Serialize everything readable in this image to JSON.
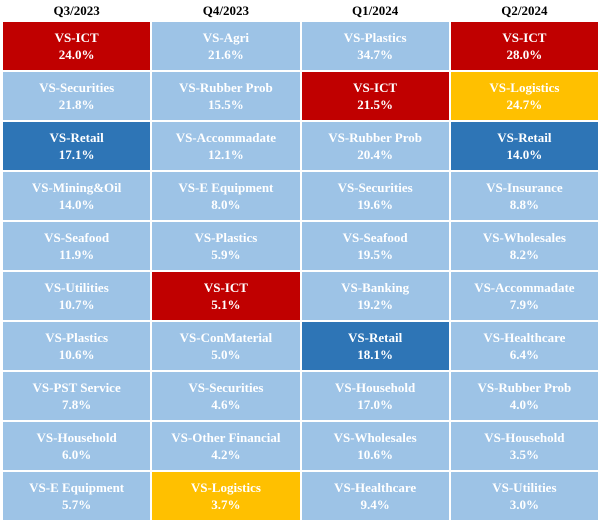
{
  "colors": {
    "default": "#9dc3e6",
    "ICT": "#c00000",
    "Retail": "#2e75b6",
    "Logistics": "#ffc000"
  },
  "chart_data": {
    "type": "table",
    "columns": [
      "Q3/2023",
      "Q4/2023",
      "Q1/2024",
      "Q2/2024"
    ],
    "rows": [
      [
        {
          "name": "VS-ICT",
          "value": "24.0%",
          "highlight": "ICT"
        },
        {
          "name": "VS-Agri",
          "value": "21.6%",
          "highlight": "default"
        },
        {
          "name": "VS-Plastics",
          "value": "34.7%",
          "highlight": "default"
        },
        {
          "name": "VS-ICT",
          "value": "28.0%",
          "highlight": "ICT"
        }
      ],
      [
        {
          "name": "VS-Securities",
          "value": "21.8%",
          "highlight": "default"
        },
        {
          "name": "VS-Rubber Prob",
          "value": "15.5%",
          "highlight": "default"
        },
        {
          "name": "VS-ICT",
          "value": "21.5%",
          "highlight": "ICT"
        },
        {
          "name": "VS-Logistics",
          "value": "24.7%",
          "highlight": "Logistics"
        }
      ],
      [
        {
          "name": "VS-Retail",
          "value": "17.1%",
          "highlight": "Retail"
        },
        {
          "name": "VS-Accommadate",
          "value": "12.1%",
          "highlight": "default"
        },
        {
          "name": "VS-Rubber Prob",
          "value": "20.4%",
          "highlight": "default"
        },
        {
          "name": "VS-Retail",
          "value": "14.0%",
          "highlight": "Retail"
        }
      ],
      [
        {
          "name": "VS-Mining&Oil",
          "value": "14.0%",
          "highlight": "default"
        },
        {
          "name": "VS-E Equipment",
          "value": "8.0%",
          "highlight": "default"
        },
        {
          "name": "VS-Securities",
          "value": "19.6%",
          "highlight": "default"
        },
        {
          "name": "VS-Insurance",
          "value": "8.8%",
          "highlight": "default"
        }
      ],
      [
        {
          "name": "VS-Seafood",
          "value": "11.9%",
          "highlight": "default"
        },
        {
          "name": "VS-Plastics",
          "value": "5.9%",
          "highlight": "default"
        },
        {
          "name": "VS-Seafood",
          "value": "19.5%",
          "highlight": "default"
        },
        {
          "name": "VS-Wholesales",
          "value": "8.2%",
          "highlight": "default"
        }
      ],
      [
        {
          "name": "VS-Utilities",
          "value": "10.7%",
          "highlight": "default"
        },
        {
          "name": "VS-ICT",
          "value": "5.1%",
          "highlight": "ICT"
        },
        {
          "name": "VS-Banking",
          "value": "19.2%",
          "highlight": "default"
        },
        {
          "name": "VS-Accommadate",
          "value": "7.9%",
          "highlight": "default"
        }
      ],
      [
        {
          "name": "VS-Plastics",
          "value": "10.6%",
          "highlight": "default"
        },
        {
          "name": "VS-ConMaterial",
          "value": "5.0%",
          "highlight": "default"
        },
        {
          "name": "VS-Retail",
          "value": "18.1%",
          "highlight": "Retail"
        },
        {
          "name": "VS-Healthcare",
          "value": "6.4%",
          "highlight": "default"
        }
      ],
      [
        {
          "name": "VS-PST Service",
          "value": "7.8%",
          "highlight": "default"
        },
        {
          "name": "VS-Securities",
          "value": "4.6%",
          "highlight": "default"
        },
        {
          "name": "VS-Household",
          "value": "17.0%",
          "highlight": "default"
        },
        {
          "name": "VS-Rubber Prob",
          "value": "4.0%",
          "highlight": "default"
        }
      ],
      [
        {
          "name": "VS-Household",
          "value": "6.0%",
          "highlight": "default"
        },
        {
          "name": "VS-Other Financial",
          "value": "4.2%",
          "highlight": "default"
        },
        {
          "name": "VS-Wholesales",
          "value": "10.6%",
          "highlight": "default"
        },
        {
          "name": "VS-Household",
          "value": "3.5%",
          "highlight": "default"
        }
      ],
      [
        {
          "name": "VS-E Equipment",
          "value": "5.7%",
          "highlight": "default"
        },
        {
          "name": "VS-Logistics",
          "value": "3.7%",
          "highlight": "Logistics"
        },
        {
          "name": "VS-Healthcare",
          "value": "9.4%",
          "highlight": "default"
        },
        {
          "name": "VS-Utilities",
          "value": "3.0%",
          "highlight": "default"
        }
      ]
    ]
  }
}
